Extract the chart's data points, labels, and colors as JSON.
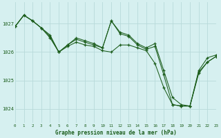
{
  "title": "Graphe pression niveau de la mer (hPa)",
  "background_color": "#d6f0f0",
  "grid_color": "#b8dada",
  "line_color": "#1a5c1a",
  "marker_color": "#1a5c1a",
  "xlim": [
    0,
    23
  ],
  "ylim": [
    1023.5,
    1027.75
  ],
  "yticks": [
    1024,
    1025,
    1026,
    1027
  ],
  "xtick_labels": [
    "0",
    "1",
    "2",
    "3",
    "4",
    "5",
    "6",
    "7",
    "8",
    "9",
    "10",
    "11",
    "12",
    "13",
    "14",
    "15",
    "16",
    "17",
    "18",
    "19",
    "20",
    "21",
    "22",
    "23"
  ],
  "envelope": [
    1026.9,
    1027.3,
    1027.1,
    1026.85,
    1026.6,
    1026.0,
    1026.2,
    1026.35,
    1026.25,
    1026.2,
    1026.05,
    1026.0,
    1026.25,
    1026.25,
    1026.15,
    1026.05,
    1025.6,
    1024.75,
    1024.15,
    1024.1,
    1024.1,
    1025.25,
    1025.65,
    1025.85
  ],
  "jagged1": [
    1026.9,
    1027.3,
    1027.1,
    1026.85,
    1026.5,
    1026.0,
    1026.25,
    1026.45,
    1026.35,
    1026.25,
    1026.15,
    1027.1,
    1026.65,
    1026.55,
    1026.25,
    1026.1,
    1026.2,
    1025.2,
    1024.15,
    1024.1,
    1024.1,
    1025.3,
    1025.65,
    1025.85
  ],
  "jagged2": [
    1026.9,
    1027.3,
    1027.1,
    1026.85,
    1026.55,
    1026.0,
    1026.25,
    1026.5,
    1026.4,
    1026.3,
    1026.15,
    1027.1,
    1026.7,
    1026.6,
    1026.3,
    1026.15,
    1026.3,
    1025.35,
    1024.4,
    1024.15,
    1024.1,
    1025.35,
    1025.8,
    1025.9
  ]
}
